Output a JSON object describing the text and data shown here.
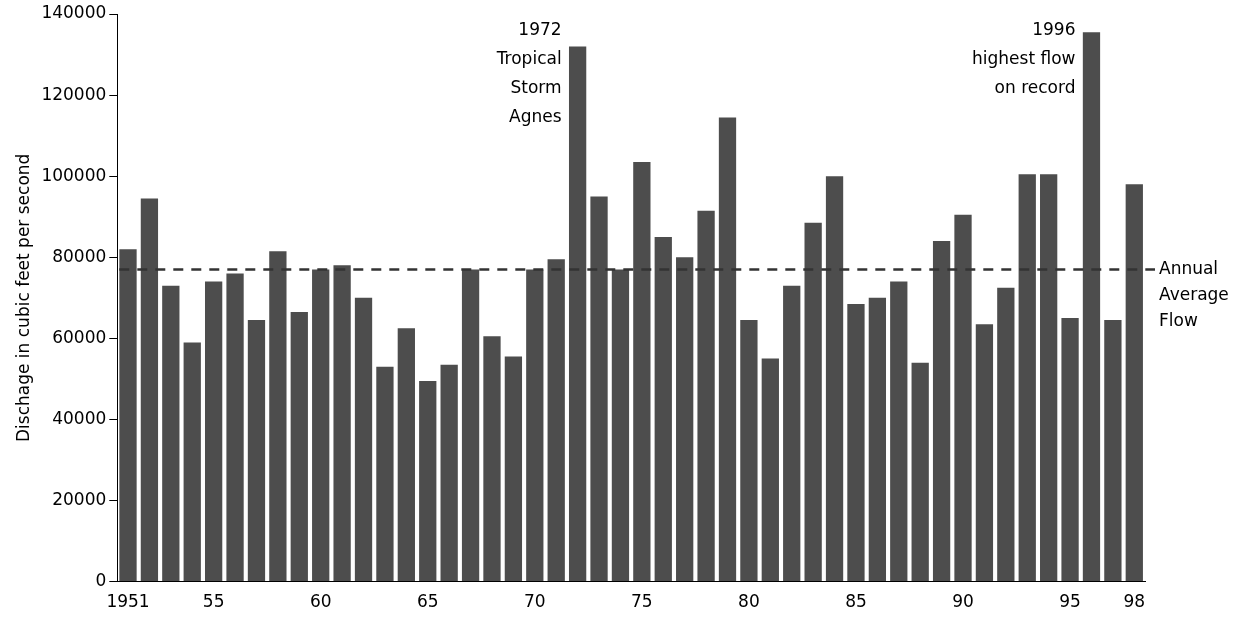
{
  "chart_data": {
    "type": "bar",
    "ylabel": "Dischage in cubic feet per second",
    "categories": [
      "1951",
      null,
      null,
      null,
      "55",
      null,
      null,
      null,
      null,
      "60",
      null,
      null,
      null,
      null,
      "65",
      null,
      null,
      null,
      null,
      "70",
      null,
      null,
      null,
      null,
      "75",
      null,
      null,
      null,
      null,
      "80",
      null,
      null,
      null,
      null,
      "85",
      null,
      null,
      null,
      null,
      "90",
      null,
      null,
      null,
      null,
      "95",
      null,
      null,
      "98"
    ],
    "values": [
      82000,
      94500,
      73000,
      59000,
      74000,
      76000,
      64500,
      81500,
      66500,
      77000,
      78000,
      70000,
      53000,
      62500,
      49500,
      53500,
      77000,
      60500,
      55500,
      77000,
      79500,
      132000,
      95000,
      77000,
      103500,
      85000,
      80000,
      91500,
      114500,
      64500,
      55000,
      73000,
      88500,
      100000,
      68500,
      70000,
      74000,
      54000,
      84000,
      90500,
      63500,
      72500,
      100500,
      100500,
      65000,
      135500,
      64500,
      98000
    ],
    "color": "#4d4d4d",
    "ylim": [
      0,
      140000
    ],
    "yticks": [
      0,
      20000,
      40000,
      60000,
      80000,
      100000,
      120000,
      140000
    ],
    "grid": false,
    "legend": false,
    "ref_lines": [
      {
        "axis": "y",
        "value": 77000,
        "label": "Annual Average Flow",
        "line_style": "dashed",
        "color": "#333333"
      }
    ],
    "annotations": [
      "1972\nTropical\nStorm\nAgnes",
      "1996\nhighest flow\non record"
    ]
  }
}
